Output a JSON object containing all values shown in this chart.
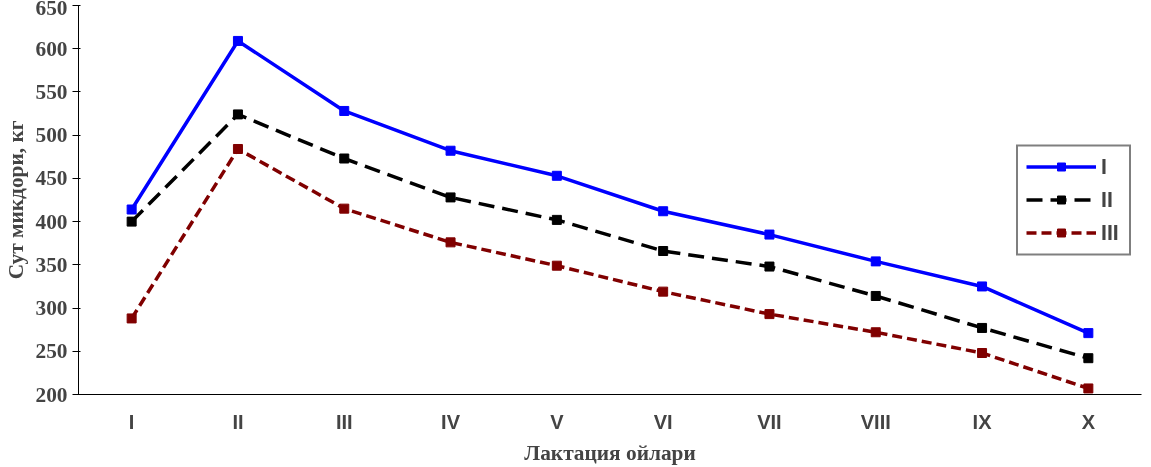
{
  "chart_data": {
    "type": "line",
    "xlabel": "Лактация ойлари",
    "ylabel": "Сут микдори, кг",
    "categories": [
      "I",
      "II",
      "III",
      "IV",
      "V",
      "VI",
      "VII",
      "VIII",
      "IX",
      "X"
    ],
    "series": [
      {
        "name": "I",
        "color": "#0000ff",
        "line_style": "solid",
        "values": [
          414,
          609,
          528,
          482,
          453,
          412,
          385,
          354,
          325,
          271
        ]
      },
      {
        "name": "II",
        "color": "#000000",
        "line_style": "dashed",
        "values": [
          400,
          524,
          473,
          428,
          402,
          366,
          348,
          314,
          277,
          242
        ]
      },
      {
        "name": "III",
        "color": "#800000",
        "line_style": "dashed",
        "values": [
          288,
          484,
          415,
          376,
          349,
          319,
          293,
          272,
          248,
          207
        ]
      }
    ],
    "ylim": [
      200,
      650
    ],
    "yticks": [
      200,
      250,
      300,
      350,
      400,
      450,
      500,
      550,
      600,
      650
    ],
    "grid": false,
    "legend": "right",
    "marker": "square"
  }
}
